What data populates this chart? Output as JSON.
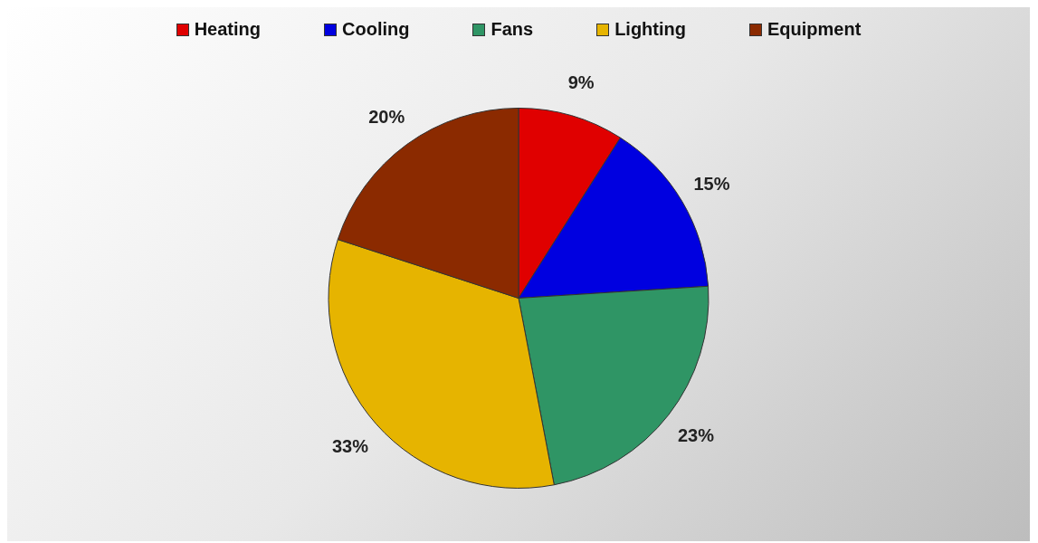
{
  "chart_data": {
    "type": "pie",
    "categories": [
      "Heating",
      "Cooling",
      "Fans",
      "Lighting",
      "Equipment"
    ],
    "values": [
      9,
      15,
      23,
      33,
      20
    ],
    "value_labels": [
      "9%",
      "15%",
      "23%",
      "33%",
      "20%"
    ],
    "colors": [
      "#e00000",
      "#0000e0",
      "#2f9565",
      "#e6b400",
      "#8b2a00"
    ],
    "legend": "top"
  }
}
